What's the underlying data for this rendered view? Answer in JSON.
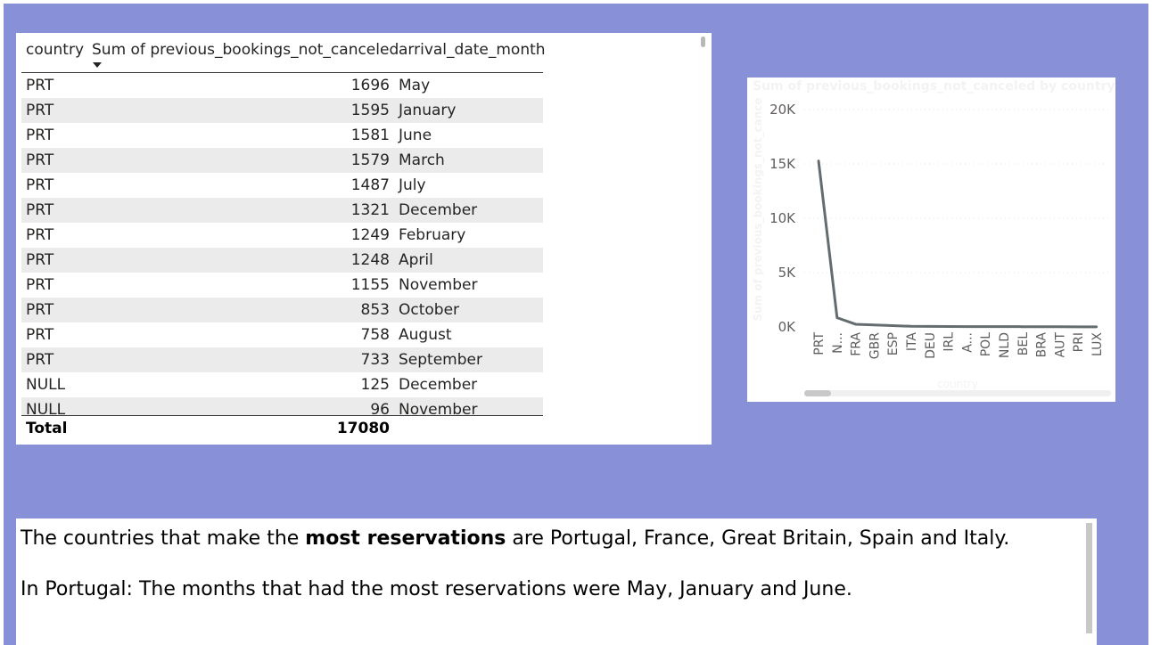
{
  "table": {
    "columns": [
      "country",
      "Sum of previous_bookings_not_canceled",
      "arrival_date_month"
    ],
    "rows": [
      [
        "PRT",
        "1696",
        "May"
      ],
      [
        "PRT",
        "1595",
        "January"
      ],
      [
        "PRT",
        "1581",
        "June"
      ],
      [
        "PRT",
        "1579",
        "March"
      ],
      [
        "PRT",
        "1487",
        "July"
      ],
      [
        "PRT",
        "1321",
        "December"
      ],
      [
        "PRT",
        "1249",
        "February"
      ],
      [
        "PRT",
        "1248",
        "April"
      ],
      [
        "PRT",
        "1155",
        "November"
      ],
      [
        "PRT",
        "853",
        "October"
      ],
      [
        "PRT",
        "758",
        "August"
      ],
      [
        "PRT",
        "733",
        "September"
      ],
      [
        "NULL",
        "125",
        "December"
      ],
      [
        "NULL",
        "96",
        "November"
      ]
    ],
    "total_label": "Total",
    "total_value": "17080"
  },
  "chart_data": {
    "type": "line",
    "title": "Sum of previous_bookings_not_canceled by country",
    "xlabel": "country",
    "ylabel": "Sum of previous_bookings_not_cance",
    "categories": [
      "PRT",
      "N...",
      "FRA",
      "GBR",
      "ESP",
      "ITA",
      "DEU",
      "IRL",
      "A...",
      "POL",
      "NLD",
      "BEL",
      "BRA",
      "AUT",
      "PRI",
      "LUX"
    ],
    "values": [
      15300,
      850,
      250,
      180,
      120,
      60,
      50,
      40,
      35,
      30,
      30,
      25,
      20,
      20,
      15,
      10
    ],
    "yticks": [
      "0K",
      "5K",
      "10K",
      "15K",
      "20K"
    ],
    "ylim": [
      0,
      20000
    ],
    "grid": true,
    "line_color": "#646c70"
  },
  "textbox": {
    "line1_pre": "The countries that make the ",
    "line1_bold": "most reservations",
    "line1_post": " are Portugal, France, Great Britain, Spain and Italy.",
    "line2": "In Portugal: The months that had the most reservations were May, January and June."
  },
  "colors": {
    "canvas_bg": "#8890d8",
    "row_alt": "#ebebeb"
  }
}
